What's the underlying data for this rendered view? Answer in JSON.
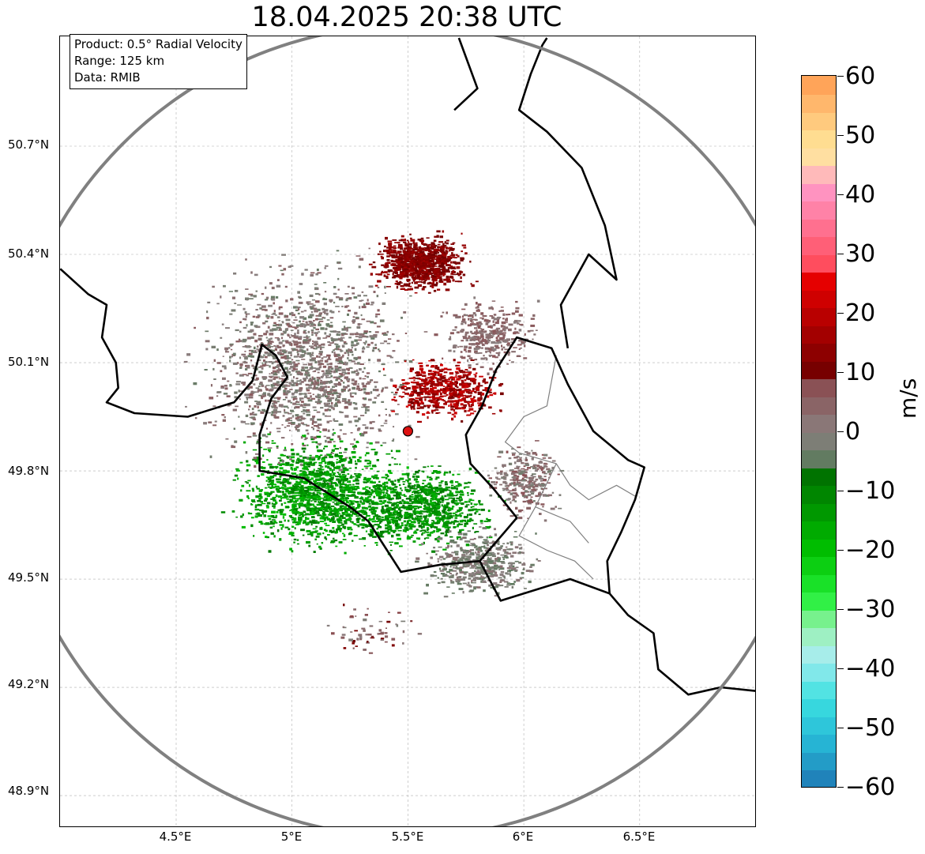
{
  "title": "18.04.2025 20:38 UTC",
  "info_box": {
    "product": "Product: 0.5° Radial Velocity",
    "range": "Range: 125 km",
    "source": "Data: RMIB"
  },
  "latitude_labels": [
    "50.7°N",
    "50.4°N",
    "50.1°N",
    "49.8°N",
    "49.5°N",
    "49.2°N",
    "48.9°N"
  ],
  "longitude_labels": [
    "4.5°E",
    "5°E",
    "5.5°E",
    "6°E",
    "6.5°E"
  ],
  "colorbar": {
    "unit": "m/s",
    "min": -60,
    "max": 60,
    "tick_labels": [
      "60",
      "50",
      "40",
      "30",
      "20",
      "10",
      "0",
      "−10",
      "−20",
      "−30",
      "−40",
      "−50",
      "−60"
    ],
    "stops": [
      {
        "value": -60,
        "color": "#1f77b4"
      },
      {
        "value": -52,
        "color": "#26b8d6"
      },
      {
        "value": -45,
        "color": "#3be0e0"
      },
      {
        "value": -38,
        "color": "#a8ecf0"
      },
      {
        "value": -33,
        "color": "#9af2b0"
      },
      {
        "value": -28,
        "color": "#25f03a"
      },
      {
        "value": -20,
        "color": "#00c000"
      },
      {
        "value": -6,
        "color": "#006a00"
      },
      {
        "value": -5,
        "color": "#5e7a5e"
      },
      {
        "value": 0,
        "color": "#8a8080"
      },
      {
        "value": 8,
        "color": "#8a4e52"
      },
      {
        "value": 9,
        "color": "#6c0000"
      },
      {
        "value": 27,
        "color": "#f00000"
      },
      {
        "value": 28,
        "color": "#ff4a5a"
      },
      {
        "value": 42,
        "color": "#ff9ccc"
      },
      {
        "value": 45,
        "color": "#ffd8a8"
      },
      {
        "value": 48,
        "color": "#ffe69a"
      },
      {
        "value": 60,
        "color": "#ff9a50"
      }
    ]
  },
  "map": {
    "radar_site": {
      "lon": 5.5,
      "lat": 49.91
    },
    "range_km": 125,
    "lon_range": [
      4.0,
      7.0
    ],
    "lat_range": [
      48.8,
      51.0
    ],
    "colors": {
      "border": "#000000",
      "admin_border": "#808080",
      "range_ring": "#808080",
      "grid": "#b0b0b0",
      "site_marker": "#dd1111"
    },
    "echo_regions": [
      {
        "name": "inbound-south-west",
        "lon": 5.12,
        "lat": 49.74,
        "rx_deg": 0.45,
        "ry_deg": 0.19,
        "velocity_min": -20,
        "velocity_max": -8,
        "count": 1400
      },
      {
        "name": "inbound-south",
        "lon": 5.55,
        "lat": 49.7,
        "rx_deg": 0.38,
        "ry_deg": 0.14,
        "velocity_min": -18,
        "velocity_max": -7,
        "count": 900
      },
      {
        "name": "near-zero-west",
        "lon": 5.05,
        "lat": 50.1,
        "rx_deg": 0.55,
        "ry_deg": 0.35,
        "velocity_min": -4,
        "velocity_max": 6,
        "count": 1600
      },
      {
        "name": "near-zero-south-east",
        "lon": 5.8,
        "lat": 49.55,
        "rx_deg": 0.3,
        "ry_deg": 0.12,
        "velocity_min": -5,
        "velocity_max": 3,
        "count": 500
      },
      {
        "name": "outbound-north",
        "lon": 5.55,
        "lat": 50.38,
        "rx_deg": 0.25,
        "ry_deg": 0.1,
        "velocity_min": 9,
        "velocity_max": 16,
        "count": 900
      },
      {
        "name": "outbound-center",
        "lon": 5.65,
        "lat": 50.03,
        "rx_deg": 0.3,
        "ry_deg": 0.1,
        "velocity_min": 10,
        "velocity_max": 24,
        "count": 600
      },
      {
        "name": "near-zero-north-east",
        "lon": 5.85,
        "lat": 50.18,
        "rx_deg": 0.25,
        "ry_deg": 0.12,
        "velocity_min": 0,
        "velocity_max": 7,
        "count": 350
      },
      {
        "name": "mixed-east",
        "lon": 6.0,
        "lat": 49.78,
        "rx_deg": 0.2,
        "ry_deg": 0.14,
        "velocity_min": -3,
        "velocity_max": 8,
        "count": 300
      },
      {
        "name": "scatter-south",
        "lon": 5.35,
        "lat": 49.36,
        "rx_deg": 0.25,
        "ry_deg": 0.08,
        "velocity_min": -2,
        "velocity_max": 12,
        "count": 60
      }
    ],
    "borders": [
      [
        [
          4.0,
          50.36
        ],
        [
          4.12,
          50.29
        ],
        [
          4.2,
          50.26
        ],
        [
          4.18,
          50.17
        ],
        [
          4.24,
          50.1
        ],
        [
          4.25,
          50.03
        ],
        [
          4.2,
          49.99
        ],
        [
          4.32,
          49.96
        ],
        [
          4.55,
          49.95
        ],
        [
          4.75,
          49.99
        ],
        [
          4.83,
          50.05
        ],
        [
          4.87,
          50.15
        ],
        [
          4.93,
          50.12
        ],
        [
          4.98,
          50.06
        ],
        [
          4.91,
          50.0
        ],
        [
          4.86,
          49.9
        ],
        [
          4.86,
          49.8
        ],
        [
          5.05,
          49.78
        ],
        [
          5.25,
          49.7
        ],
        [
          5.33,
          49.66
        ],
        [
          5.47,
          49.52
        ],
        [
          5.64,
          49.54
        ],
        [
          5.81,
          49.55
        ],
        [
          5.9,
          49.44
        ],
        [
          6.0,
          49.46
        ],
        [
          6.2,
          49.5
        ],
        [
          6.37,
          49.46
        ],
        [
          6.45,
          49.4
        ],
        [
          6.56,
          49.35
        ],
        [
          6.58,
          49.25
        ],
        [
          6.71,
          49.18
        ],
        [
          6.85,
          49.2
        ],
        [
          7.0,
          49.19
        ]
      ],
      [
        [
          5.81,
          49.55
        ],
        [
          5.97,
          49.67
        ],
        [
          5.87,
          49.75
        ],
        [
          5.77,
          49.82
        ],
        [
          5.75,
          49.9
        ],
        [
          5.82,
          49.98
        ],
        [
          5.88,
          50.08
        ],
        [
          5.97,
          50.17
        ],
        [
          6.12,
          50.14
        ],
        [
          6.19,
          50.04
        ],
        [
          6.3,
          49.91
        ],
        [
          6.45,
          49.83
        ],
        [
          6.52,
          49.81
        ],
        [
          6.48,
          49.72
        ],
        [
          6.42,
          49.63
        ],
        [
          6.36,
          49.55
        ],
        [
          6.37,
          49.46
        ]
      ],
      [
        [
          6.19,
          50.14
        ],
        [
          6.16,
          50.26
        ],
        [
          6.28,
          50.4
        ],
        [
          6.4,
          50.33
        ],
        [
          6.35,
          50.48
        ],
        [
          6.25,
          50.64
        ],
        [
          6.1,
          50.74
        ],
        [
          5.98,
          50.8
        ],
        [
          6.03,
          50.9
        ],
        [
          6.08,
          50.98
        ],
        [
          6.1,
          51.0
        ]
      ],
      [
        [
          5.72,
          51.0
        ],
        [
          5.8,
          50.86
        ],
        [
          5.7,
          50.8
        ]
      ]
    ],
    "admin_borders": [
      [
        [
          6.14,
          50.12
        ],
        [
          6.1,
          49.98
        ],
        [
          6.0,
          49.95
        ],
        [
          5.92,
          49.88
        ],
        [
          5.98,
          49.85
        ],
        [
          6.14,
          49.82
        ],
        [
          6.2,
          49.76
        ],
        [
          6.28,
          49.72
        ],
        [
          6.4,
          49.76
        ],
        [
          6.48,
          49.73
        ]
      ],
      [
        [
          6.14,
          49.82
        ],
        [
          6.05,
          49.7
        ],
        [
          5.98,
          49.62
        ],
        [
          6.1,
          49.58
        ],
        [
          6.22,
          49.55
        ],
        [
          6.3,
          49.5
        ]
      ],
      [
        [
          6.05,
          49.7
        ],
        [
          6.2,
          49.66
        ],
        [
          6.28,
          49.6
        ]
      ]
    ]
  }
}
